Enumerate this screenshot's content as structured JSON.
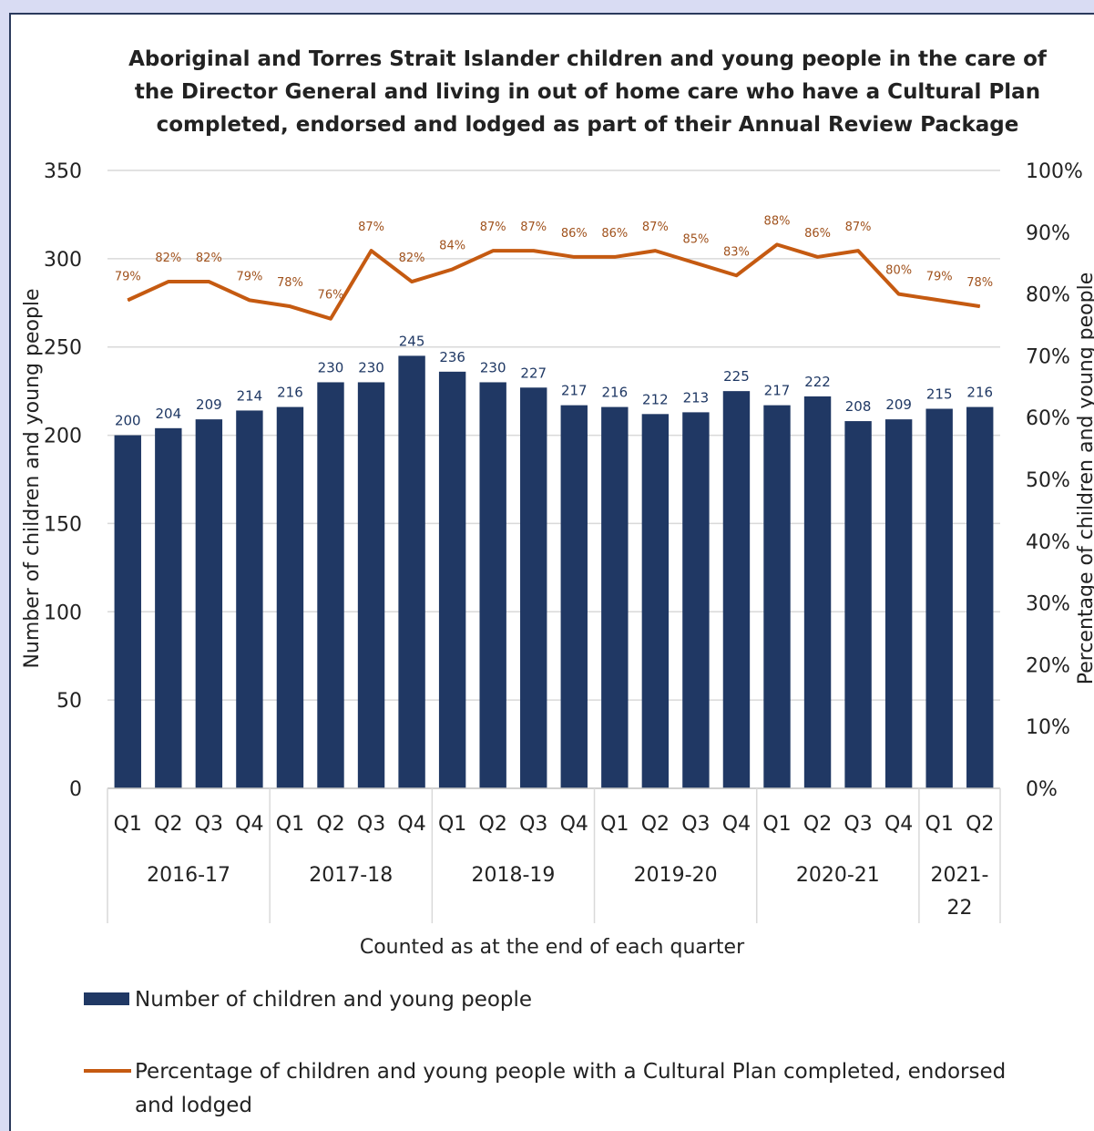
{
  "chart_data": {
    "type": "bar",
    "title": [
      "Aboriginal and Torres Strait Islander children and young people in the care of",
      "the Director General and living in out of home care who have a Cultural Plan",
      "completed, endorsed and lodged as part of their Annual Review Package"
    ],
    "xlabel": "Counted as at the end of each quarter",
    "ylabel": "Number of children and young people",
    "y2label": "Percentage of children and young people",
    "ylim": [
      0,
      350
    ],
    "y_ticks": [
      "0",
      "50",
      "100",
      "150",
      "200",
      "250",
      "300",
      "350"
    ],
    "y2lim": [
      0,
      100
    ],
    "y2_ticks": [
      "0%",
      "10%",
      "20%",
      "30%",
      "40%",
      "50%",
      "60%",
      "70%",
      "80%",
      "90%",
      "100%"
    ],
    "grid": "horizontal",
    "legend_position": "bottom",
    "categories": [
      "Q1",
      "Q2",
      "Q3",
      "Q4",
      "Q1",
      "Q2",
      "Q3",
      "Q4",
      "Q1",
      "Q2",
      "Q3",
      "Q4",
      "Q1",
      "Q2",
      "Q3",
      "Q4",
      "Q1",
      "Q2",
      "Q3",
      "Q4",
      "Q1",
      "Q2"
    ],
    "groups": [
      {
        "label": [
          "2016-17"
        ],
        "count": 4
      },
      {
        "label": [
          "2017-18"
        ],
        "count": 4
      },
      {
        "label": [
          "2018-19"
        ],
        "count": 4
      },
      {
        "label": [
          "2019-20"
        ],
        "count": 4
      },
      {
        "label": [
          "2020-21"
        ],
        "count": 4
      },
      {
        "label": [
          "2021-",
          "22"
        ],
        "count": 2
      }
    ],
    "series": [
      {
        "name": "Number of children and young people",
        "type": "bar",
        "axis": "left",
        "color": "#203864",
        "values": [
          200,
          204,
          209,
          214,
          216,
          230,
          230,
          245,
          236,
          230,
          227,
          217,
          216,
          212,
          213,
          225,
          217,
          222,
          208,
          209,
          215,
          216
        ],
        "labels": [
          "200",
          "204",
          "209",
          "214",
          "216",
          "230",
          "230",
          "245",
          "236",
          "230",
          "227",
          "217",
          "216",
          "212",
          "213",
          "225",
          "217",
          "222",
          "208",
          "209",
          "215",
          "216"
        ]
      },
      {
        "name": "Percentage of children and young people with a Cultural Plan completed, endorsed and lodged",
        "type": "line",
        "axis": "right",
        "color": "#c55a11",
        "values": [
          79,
          82,
          82,
          79,
          78,
          76,
          87,
          82,
          84,
          87,
          87,
          86,
          86,
          87,
          85,
          83,
          88,
          86,
          87,
          80,
          79,
          78
        ],
        "labels": [
          "79%",
          "82%",
          "82%",
          "79%",
          "78%",
          "76%",
          "87%",
          "82%",
          "84%",
          "87%",
          "87%",
          "86%",
          "86%",
          "87%",
          "85%",
          "83%",
          "88%",
          "86%",
          "87%",
          "80%",
          "79%",
          "78%"
        ]
      }
    ]
  },
  "legend": {
    "bar_label": "Number of children and young people",
    "line_label_1": "Percentage of children and young people with a Cultural Plan completed, endorsed",
    "line_label_2": "and lodged"
  }
}
